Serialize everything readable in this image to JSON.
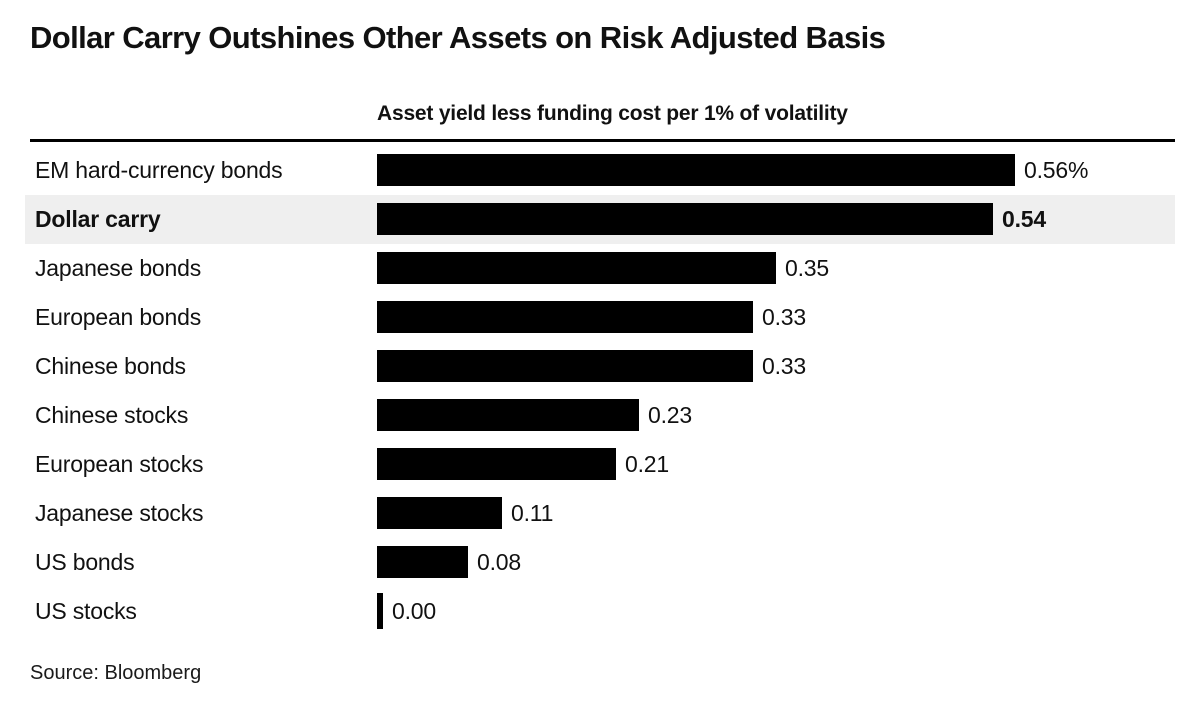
{
  "chart_data": {
    "type": "bar",
    "orientation": "horizontal",
    "title": "Dollar Carry Outshines Other Assets on Risk Adjusted Basis",
    "axis_title": "Asset yield less funding cost per 1% of volatility",
    "source": "Source: Bloomberg",
    "categories": [
      "EM hard-currency bonds",
      "Dollar carry",
      "Japanese bonds",
      "European bonds",
      "Chinese bonds",
      "Chinese stocks",
      "European stocks",
      "Japanese stocks",
      "US bonds",
      "US stocks"
    ],
    "values": [
      0.56,
      0.54,
      0.35,
      0.33,
      0.33,
      0.23,
      0.21,
      0.11,
      0.08,
      0.0
    ],
    "value_labels": [
      "0.56%",
      "0.54",
      "0.35",
      "0.33",
      "0.33",
      "0.23",
      "0.21",
      "0.11",
      "0.08",
      "0.00"
    ],
    "highlighted_category": "Dollar carry",
    "xlim": [
      0,
      0.7
    ],
    "grid": false,
    "legend": false,
    "bar_color": "#000000",
    "highlight_band_color": "#efefef",
    "text_color": "#111111",
    "background_color": "#ffffff"
  }
}
